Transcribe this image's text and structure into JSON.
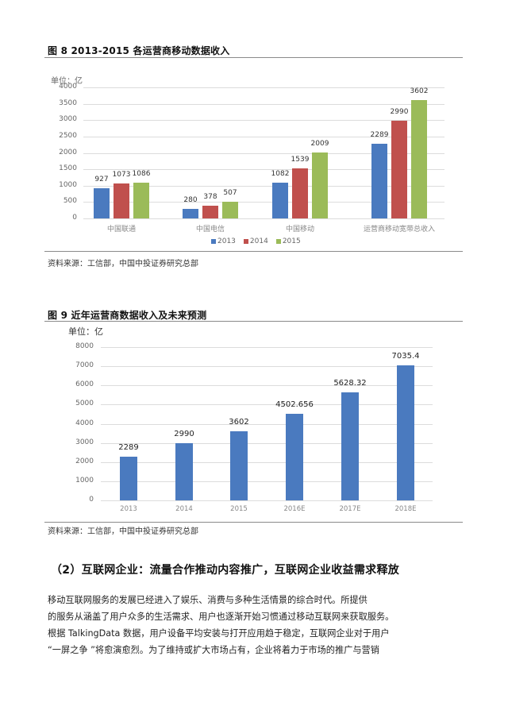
{
  "figure8": {
    "title": "图 8    2013-2015  各运营商移动数据收入",
    "unit": "单位：亿",
    "source": "资料来源：工信部，中国中投证券研究总部",
    "yticks": [
      "4000",
      "3500",
      "3000",
      "2500",
      "2000",
      "1500",
      "1000",
      "500",
      "0"
    ],
    "colors": {
      "2013": "#4a7abf",
      "2014": "#c0504d",
      "2015": "#9bbb59"
    }
  },
  "figure9": {
    "title": "图 9    近年运营商数据收入及未来预测",
    "unit": "单位：亿",
    "source": "资料来源：工信部，中国中投证券研究总部",
    "yticks": [
      "8000",
      "7000",
      "6000",
      "5000",
      "4000",
      "3000",
      "2000",
      "1000",
      "0"
    ],
    "color": "#4a7abf"
  },
  "chart_data": [
    {
      "type": "bar",
      "title": "2013-2015 各运营商移动数据收入",
      "ylabel": "单位：亿",
      "xlabel": "",
      "ylim": [
        0,
        4000
      ],
      "yticks": [
        0,
        500,
        1000,
        1500,
        2000,
        2500,
        3000,
        3500,
        4000
      ],
      "grid": true,
      "legend_position": "bottom",
      "categories": [
        "中国联通",
        "中国电信",
        "中国移动",
        "运营商移动宽带总收入"
      ],
      "series": [
        {
          "name": "2013",
          "values": [
            927,
            280,
            1082,
            2289
          ],
          "color": "#4a7abf"
        },
        {
          "name": "2014",
          "values": [
            1073,
            378,
            1539,
            2990
          ],
          "color": "#c0504d"
        },
        {
          "name": "2015",
          "values": [
            1086,
            507,
            2009,
            3602
          ],
          "color": "#9bbb59"
        }
      ]
    },
    {
      "type": "bar",
      "title": "近年运营商数据收入及未来预测",
      "ylabel": "单位：亿",
      "xlabel": "",
      "ylim": [
        0,
        8000
      ],
      "yticks": [
        0,
        1000,
        2000,
        3000,
        4000,
        5000,
        6000,
        7000,
        8000
      ],
      "grid": true,
      "categories": [
        "2013",
        "2014",
        "2015",
        "2016E",
        "2017E",
        "2018E"
      ],
      "values": [
        2289,
        2990,
        3602,
        4502.656,
        5628.32,
        7035.4
      ],
      "value_labels": [
        "2289",
        "2990",
        "3602",
        "4502.656",
        "5628.32",
        "7035.4"
      ],
      "color": "#4a7abf"
    }
  ],
  "section": {
    "heading": "（2）互联网企业：流量合作推动内容推广，互联网企业收益需求释放",
    "paragraph_lines": [
      "      移动互联网服务的发展已经进入了娱乐、消费与多种生活情景的综合时代。所提供",
      "的服务从涵盖了用户众多的生活需求、用户也逐渐开始习惯通过移动互联网来获取服务。",
      "根据 TalkingData 数据，用户设备平均安装与打开应用趋于稳定，互联网企业对于用户",
      " “一屏之争 ”将愈演愈烈。为了维持或扩大市场占有，企业将着力于市场的推广与营销"
    ]
  }
}
